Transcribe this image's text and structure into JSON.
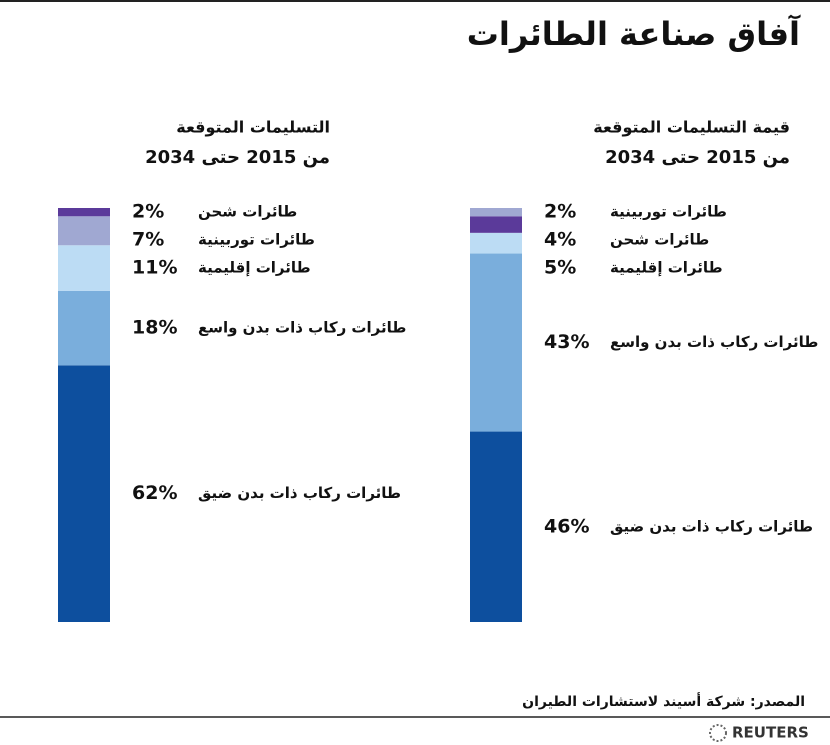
{
  "title": "آفاق صناعة الطائرات",
  "source": "المصدر: شركة أسيند لاستشارات الطيران",
  "logo": "REUTERS",
  "chart_data": [
    {
      "type": "stacked_bar",
      "title": "قيمة التسليمات المتوقعة",
      "subtitle": "من 2015 حتى 2034",
      "series": [
        {
          "name": "طائرات ركاب ذات بدن ضيق",
          "color": "#0d4f9e",
          "values": [
            46
          ],
          "value_labels": [
            "46%"
          ]
        },
        {
          "name": "طائرات ركاب ذات بدن واسع",
          "color": "#7aaedc",
          "values": [
            43
          ],
          "value_labels": [
            "43%"
          ]
        },
        {
          "name": "طائرات إقليمية",
          "color": "#bcdcf4",
          "values": [
            5
          ],
          "value_labels": [
            "5%"
          ]
        },
        {
          "name": "طائرات شحن",
          "color": "#5b3a9a",
          "values": [
            4
          ],
          "value_labels": [
            "4%"
          ]
        },
        {
          "name": "طائرات توربينية",
          "color": "#a0a8d2",
          "values": [
            2
          ],
          "value_labels": [
            "2%"
          ]
        }
      ]
    },
    {
      "type": "stacked_bar",
      "title": "التسليمات المتوقعة",
      "subtitle": "من 2015 حتى 2034",
      "series": [
        {
          "name": "طائرات ركاب ذات بدن ضيق",
          "color": "#0d4f9e",
          "values": [
            62
          ],
          "value_labels": [
            "62%"
          ]
        },
        {
          "name": "طائرات ركاب ذات بدن واسع",
          "color": "#7aaedc",
          "values": [
            18
          ],
          "value_labels": [
            "18%"
          ]
        },
        {
          "name": "طائرات إقليمية",
          "color": "#bcdcf4",
          "values": [
            11
          ],
          "value_labels": [
            "11%"
          ]
        },
        {
          "name": "طائرات توربينية",
          "color": "#a0a8d2",
          "values": [
            7
          ],
          "value_labels": [
            "7%"
          ]
        },
        {
          "name": "طائرات شحن",
          "color": "#5b3a9a",
          "values": [
            2
          ],
          "value_labels": [
            "2%"
          ]
        }
      ]
    }
  ]
}
